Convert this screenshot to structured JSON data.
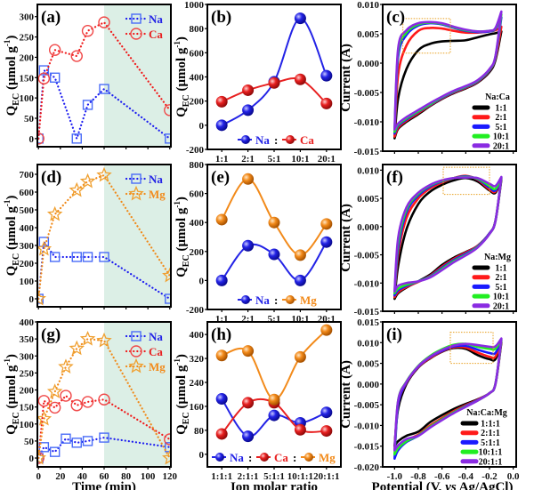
{
  "colors": {
    "Na": "#2323e6",
    "Ca": "#e82020",
    "Mg": "#f28a1a",
    "shade": "#dcefe6",
    "box": "#e8a020",
    "cv": [
      "#000000",
      "#ff1a1a",
      "#1a1aff",
      "#22ee22",
      "#8a2be2"
    ]
  },
  "qec_label": {
    "q": "Q",
    "sub": "EC",
    "unit": " (μmol g",
    "sup": "-1",
    "end": ")"
  },
  "chart_data": [
    {
      "panel": "(a)",
      "type": "line",
      "line_style": "dotted",
      "shaded_region": [
        60,
        120
      ],
      "xlim": [
        -1,
        121
      ],
      "ylim": [
        -20,
        330
      ],
      "xticks": [
        "0",
        "20",
        "40",
        "60",
        "80",
        "100",
        "120"
      ],
      "show_xtick_labels": false,
      "yticks": [
        "0",
        "50",
        "100",
        "150",
        "200",
        "250",
        "300"
      ],
      "ylabel": "qec",
      "xlabel": "",
      "legend": "top-right",
      "series": [
        {
          "name": "Na",
          "marker": "square",
          "x": [
            0,
            5,
            15,
            35,
            45,
            60,
            120
          ],
          "y": [
            0,
            168,
            150,
            0,
            83,
            122,
            0
          ]
        },
        {
          "name": "Ca",
          "marker": "circle",
          "x": [
            0,
            5,
            15,
            35,
            45,
            60,
            120
          ],
          "y": [
            0,
            148,
            218,
            203,
            265,
            286,
            70
          ]
        }
      ]
    },
    {
      "panel": "(b)",
      "type": "line",
      "line_style": "smooth",
      "categories": [
        "1:1",
        "2:1",
        "5:1",
        "10:1",
        "20:1"
      ],
      "ylim": [
        -200,
        1000
      ],
      "yticks": [
        "-200",
        "0",
        "200",
        "400",
        "600",
        "800",
        "1000"
      ],
      "ylabel": "qec",
      "xlabel": "",
      "legend": "bottom",
      "legend_separator": ":",
      "series": [
        {
          "name": "Na",
          "values": [
            0,
            125,
            360,
            885,
            410
          ]
        },
        {
          "name": "Ca",
          "values": [
            195,
            290,
            350,
            380,
            180
          ]
        }
      ]
    },
    {
      "panel": "(c)",
      "type": "line",
      "line_style": "cv",
      "xlim": [
        -1.1,
        0.025
      ],
      "ylim": [
        -0.015,
        0.01
      ],
      "xticks": [
        "-1.0",
        "-0.8",
        "-0.6",
        "-0.4",
        "-0.2",
        "0.0"
      ],
      "show_xtick_labels": false,
      "yticks": [
        "-0.015",
        "-0.010",
        "-0.005",
        "0.000",
        "0.005",
        "0.010"
      ],
      "ylabel": "Current (A)",
      "xlabel": "",
      "legend": "bottom-right",
      "legend_title": "Na:Ca",
      "highlight_box": {
        "x": [
          -0.93,
          -0.53
        ],
        "y": [
          0.0017,
          0.0076
        ]
      },
      "potential": [
        -1.0,
        -0.97,
        -0.9,
        -0.8,
        -0.7,
        -0.6,
        -0.5,
        -0.4,
        -0.3,
        -0.2,
        -0.15,
        -0.1
      ],
      "series": [
        {
          "name": "1:1",
          "upper": [
            -0.0128,
            -0.006,
            -0.001,
            0.0022,
            0.0033,
            0.0037,
            0.0038,
            0.0039,
            0.0044,
            0.0049,
            0.0051,
            0.0054
          ],
          "lower": [
            -0.0128,
            -0.0112,
            -0.01,
            -0.0087,
            -0.0073,
            -0.0061,
            -0.0051,
            -0.0043,
            -0.0033,
            -0.0015,
            0.0005,
            0.0054
          ]
        },
        {
          "name": "2:1",
          "upper": [
            -0.0125,
            -0.002,
            0.003,
            0.0055,
            0.006,
            0.0059,
            0.0055,
            0.0052,
            0.0052,
            0.0054,
            0.0056,
            0.0062
          ],
          "lower": [
            -0.0125,
            -0.011,
            -0.0098,
            -0.0085,
            -0.0072,
            -0.006,
            -0.005,
            -0.0042,
            -0.0032,
            -0.0013,
            0.0008,
            0.0062
          ]
        },
        {
          "name": "5:1",
          "upper": [
            -0.012,
            0.001,
            0.0048,
            0.0064,
            0.0068,
            0.0066,
            0.006,
            0.0055,
            0.0053,
            0.0054,
            0.0058,
            0.0078
          ],
          "lower": [
            -0.012,
            -0.0107,
            -0.0096,
            -0.0083,
            -0.0071,
            -0.0059,
            -0.0049,
            -0.0041,
            -0.0031,
            -0.0012,
            0.001,
            0.0078
          ]
        },
        {
          "name": "10:1",
          "upper": [
            -0.0117,
            0.0018,
            0.0052,
            0.0066,
            0.0069,
            0.0067,
            0.0061,
            0.0056,
            0.0054,
            0.0055,
            0.0059,
            0.0083
          ],
          "lower": [
            -0.0117,
            -0.0105,
            -0.0094,
            -0.0082,
            -0.007,
            -0.0058,
            -0.0048,
            -0.004,
            -0.003,
            -0.0011,
            0.0011,
            0.0083
          ]
        },
        {
          "name": "20:1",
          "upper": [
            -0.0113,
            0.0025,
            0.0056,
            0.0068,
            0.007,
            0.0068,
            0.0062,
            0.0057,
            0.0054,
            0.0055,
            0.006,
            0.0088
          ],
          "lower": [
            -0.0113,
            -0.0103,
            -0.0092,
            -0.008,
            -0.0068,
            -0.0057,
            -0.0047,
            -0.0039,
            -0.0029,
            -0.001,
            0.0012,
            0.0088
          ]
        }
      ]
    },
    {
      "panel": "(d)",
      "type": "line",
      "line_style": "dotted",
      "shaded_region": [
        60,
        120
      ],
      "xlim": [
        -1,
        121
      ],
      "ylim": [
        -45,
        755
      ],
      "xticks": [
        "0",
        "20",
        "40",
        "60",
        "80",
        "100",
        "120"
      ],
      "show_xtick_labels": false,
      "yticks": [
        "0",
        "100",
        "200",
        "300",
        "400",
        "500",
        "600",
        "700"
      ],
      "ylabel": "qec",
      "xlabel": "",
      "legend": "top-right",
      "series": [
        {
          "name": "Na",
          "marker": "square",
          "x": [
            0,
            5,
            15,
            35,
            45,
            60,
            120
          ],
          "y": [
            0,
            320,
            235,
            235,
            235,
            235,
            0
          ]
        },
        {
          "name": "Mg",
          "marker": "star",
          "x": [
            0,
            5,
            15,
            35,
            45,
            60,
            120
          ],
          "y": [
            0,
            280,
            475,
            610,
            660,
            695,
            130
          ]
        }
      ]
    },
    {
      "panel": "(e)",
      "type": "line",
      "line_style": "smooth",
      "categories": [
        "1:1",
        "2:1",
        "5:1",
        "10:1",
        "20:1"
      ],
      "ylim": [
        -200,
        800
      ],
      "yticks": [
        "-200",
        "0",
        "200",
        "400",
        "600",
        "800"
      ],
      "ylabel": "qec",
      "xlabel": "",
      "legend": "bottom",
      "legend_separator": ":",
      "series": [
        {
          "name": "Na",
          "values": [
            0,
            240,
            180,
            0,
            265
          ]
        },
        {
          "name": "Mg",
          "values": [
            420,
            700,
            400,
            175,
            390
          ]
        }
      ]
    },
    {
      "panel": "(f)",
      "type": "line",
      "line_style": "cv",
      "xlim": [
        -1.1,
        0.025
      ],
      "ylim": [
        -0.015,
        0.011
      ],
      "xticks": [
        "-1.0",
        "-0.8",
        "-0.6",
        "-0.4",
        "-0.2",
        "0.0"
      ],
      "show_xtick_labels": false,
      "yticks": [
        "-0.015",
        "-0.010",
        "-0.005",
        "0.000",
        "0.005",
        "0.010"
      ],
      "ylabel": "Current (A)",
      "xlabel": "",
      "legend": "bottom-right",
      "legend_title": "Na:Mg",
      "highlight_box": {
        "x": [
          -0.59,
          -0.2
        ],
        "y": [
          0.0057,
          0.0105
        ]
      },
      "potential": [
        -1.0,
        -0.97,
        -0.9,
        -0.8,
        -0.7,
        -0.6,
        -0.5,
        -0.4,
        -0.3,
        -0.2,
        -0.15,
        -0.1
      ],
      "series": [
        {
          "name": "1:1",
          "upper": [
            -0.0128,
            -0.007,
            -0.0005,
            0.004,
            0.0062,
            0.0074,
            0.0082,
            0.0086,
            0.008,
            0.0064,
            0.006,
            0.0083
          ],
          "lower": [
            -0.0128,
            -0.0118,
            -0.0108,
            -0.0097,
            -0.0085,
            -0.0068,
            -0.0055,
            -0.0045,
            -0.0034,
            -0.0012,
            0.001,
            0.0083
          ]
        },
        {
          "name": "2:1",
          "upper": [
            -0.0125,
            -0.005,
            0.0015,
            0.005,
            0.0068,
            0.0078,
            0.0086,
            0.009,
            0.0083,
            0.0066,
            0.0062,
            0.0085
          ],
          "lower": [
            -0.0125,
            -0.0116,
            -0.0107,
            -0.0098,
            -0.0087,
            -0.0071,
            -0.0057,
            -0.0046,
            -0.0034,
            -0.0012,
            0.001,
            0.0085
          ]
        },
        {
          "name": "5:1",
          "upper": [
            -0.0122,
            -0.004,
            0.0025,
            0.0055,
            0.0071,
            0.008,
            0.0086,
            0.0089,
            0.0084,
            0.0069,
            0.0064,
            0.0086
          ],
          "lower": [
            -0.0122,
            -0.0113,
            -0.0105,
            -0.0097,
            -0.0088,
            -0.0073,
            -0.0059,
            -0.0048,
            -0.0035,
            -0.0012,
            0.001,
            0.0086
          ]
        },
        {
          "name": "10:1",
          "upper": [
            -0.0118,
            -0.003,
            0.003,
            0.0058,
            0.0073,
            0.0081,
            0.0086,
            0.0088,
            0.0085,
            0.0072,
            0.0067,
            0.0087
          ],
          "lower": [
            -0.0118,
            -0.011,
            -0.0103,
            -0.0097,
            -0.0089,
            -0.0075,
            -0.0061,
            -0.005,
            -0.0036,
            -0.0013,
            0.001,
            0.0087
          ]
        },
        {
          "name": "20:1",
          "upper": [
            -0.0115,
            -0.002,
            0.0034,
            0.006,
            0.0074,
            0.0082,
            0.0086,
            0.0087,
            0.0086,
            0.0076,
            0.0072,
            0.0088
          ],
          "lower": [
            -0.0115,
            -0.0105,
            -0.01,
            -0.0097,
            -0.009,
            -0.0077,
            -0.0063,
            -0.0051,
            -0.0037,
            -0.0013,
            0.001,
            0.0088
          ]
        }
      ]
    },
    {
      "panel": "(g)",
      "type": "line",
      "line_style": "dotted",
      "shaded_region": [
        60,
        120
      ],
      "xlim": [
        -1,
        121
      ],
      "ylim": [
        -26,
        400
      ],
      "xticks": [
        "0",
        "20",
        "40",
        "60",
        "80",
        "100",
        "120"
      ],
      "show_xtick_labels": true,
      "yticks": [
        "0",
        "50",
        "100",
        "150",
        "200",
        "250",
        "300",
        "350",
        "400"
      ],
      "ylabel": "qec",
      "xlabel": "Time (min)",
      "legend": "top-right",
      "series": [
        {
          "name": "Na",
          "marker": "square",
          "x": [
            0,
            5,
            15,
            25,
            35,
            45,
            60,
            120
          ],
          "y": [
            0,
            32,
            18,
            57,
            45,
            50,
            60,
            32
          ]
        },
        {
          "name": "Ca",
          "marker": "circle",
          "x": [
            0,
            5,
            15,
            25,
            35,
            45,
            60,
            120
          ],
          "y": [
            0,
            168,
            148,
            183,
            155,
            165,
            172,
            55
          ]
        },
        {
          "name": "Mg",
          "marker": "star",
          "x": [
            0,
            5,
            15,
            25,
            35,
            45,
            60,
            120
          ],
          "y": [
            0,
            115,
            195,
            268,
            322,
            350,
            345,
            0
          ]
        }
      ]
    },
    {
      "panel": "(h)",
      "type": "line",
      "line_style": "smooth",
      "categories": [
        "1:1:1",
        "2:1:1",
        "5:1:1",
        "10:1:1",
        "20:1:1"
      ],
      "ylim": [
        -42,
        442
      ],
      "yticks": [
        "0",
        "80",
        "160",
        "240",
        "320",
        "400"
      ],
      "ylabel": "qec",
      "xlabel": "Ion molar ratio",
      "legend": "bottom",
      "legend_separator": ":",
      "series": [
        {
          "name": "Na",
          "values": [
            185,
            60,
            130,
            105,
            140
          ]
        },
        {
          "name": "Ca",
          "values": [
            68,
            172,
            172,
            82,
            78
          ]
        },
        {
          "name": "Mg",
          "values": [
            330,
            345,
            183,
            325,
            415
          ]
        }
      ]
    },
    {
      "panel": "(i)",
      "type": "line",
      "line_style": "cv",
      "xlim": [
        -1.1,
        0.025
      ],
      "ylim": [
        -0.02,
        0.015
      ],
      "xticks": [
        "-1.0",
        "-0.8",
        "-0.6",
        "-0.4",
        "-0.2",
        "0.0"
      ],
      "show_xtick_labels": true,
      "yticks": [
        "-0.020",
        "-0.015",
        "-0.010",
        "-0.005",
        "0.000",
        "0.005",
        "0.010",
        "0.015"
      ],
      "ylabel": "Current (A)",
      "xlabel": {
        "pre": "Potential (V, ",
        "it": "vs",
        "post": " Ag/AgCl)"
      },
      "legend": "bottom-right",
      "legend_title": "Na:Ca:Mg",
      "highlight_box": {
        "x": [
          -0.53,
          -0.17
        ],
        "y": [
          0.005,
          0.0125
        ]
      },
      "potential": [
        -1.0,
        -0.97,
        -0.9,
        -0.8,
        -0.7,
        -0.6,
        -0.5,
        -0.4,
        -0.3,
        -0.2,
        -0.15,
        -0.1
      ],
      "series": [
        {
          "name": "1:1:1",
          "upper": [
            -0.015,
            -0.006,
            0.0,
            0.004,
            0.0062,
            0.0078,
            0.0087,
            0.0085,
            0.007,
            0.006,
            0.006,
            0.01
          ],
          "lower": [
            -0.015,
            -0.0138,
            -0.0125,
            -0.0115,
            -0.0092,
            -0.0075,
            -0.006,
            -0.0048,
            -0.0037,
            -0.0022,
            0.0,
            0.01
          ]
        },
        {
          "name": "2:1:1",
          "upper": [
            -0.016,
            -0.005,
            0.0003,
            0.0041,
            0.0063,
            0.0079,
            0.0089,
            0.0088,
            0.0076,
            0.0066,
            0.0066,
            0.0103
          ],
          "lower": [
            -0.016,
            -0.0148,
            -0.0135,
            -0.0122,
            -0.01,
            -0.0082,
            -0.0065,
            -0.0051,
            -0.0038,
            -0.0022,
            0.0,
            0.0103
          ]
        },
        {
          "name": "5:1:1",
          "upper": [
            -0.018,
            -0.005,
            0.0004,
            0.0042,
            0.0065,
            0.008,
            0.0091,
            0.0092,
            0.0083,
            0.0075,
            0.0075,
            0.0106
          ],
          "lower": [
            -0.018,
            -0.016,
            -0.014,
            -0.0125,
            -0.0104,
            -0.0085,
            -0.0068,
            -0.0053,
            -0.0039,
            -0.0022,
            0.0,
            0.0106
          ]
        },
        {
          "name": "10:1:1",
          "upper": [
            -0.017,
            -0.004,
            0.0006,
            0.0044,
            0.0068,
            0.0084,
            0.0095,
            0.0097,
            0.009,
            0.0085,
            0.0085,
            0.0108
          ],
          "lower": [
            -0.017,
            -0.0155,
            -0.0138,
            -0.0124,
            -0.0103,
            -0.0085,
            -0.0068,
            -0.0054,
            -0.004,
            -0.0022,
            0.0,
            0.0108
          ]
        },
        {
          "name": "20:1:1",
          "upper": [
            -0.016,
            -0.004,
            0.0005,
            0.0043,
            0.0066,
            0.0082,
            0.0093,
            0.0097,
            0.0094,
            0.009,
            0.0091,
            0.011
          ],
          "lower": [
            -0.016,
            -0.0148,
            -0.0133,
            -0.0125,
            -0.0105,
            -0.0087,
            -0.007,
            -0.0055,
            -0.004,
            -0.0022,
            0.0,
            0.011
          ]
        }
      ]
    }
  ]
}
